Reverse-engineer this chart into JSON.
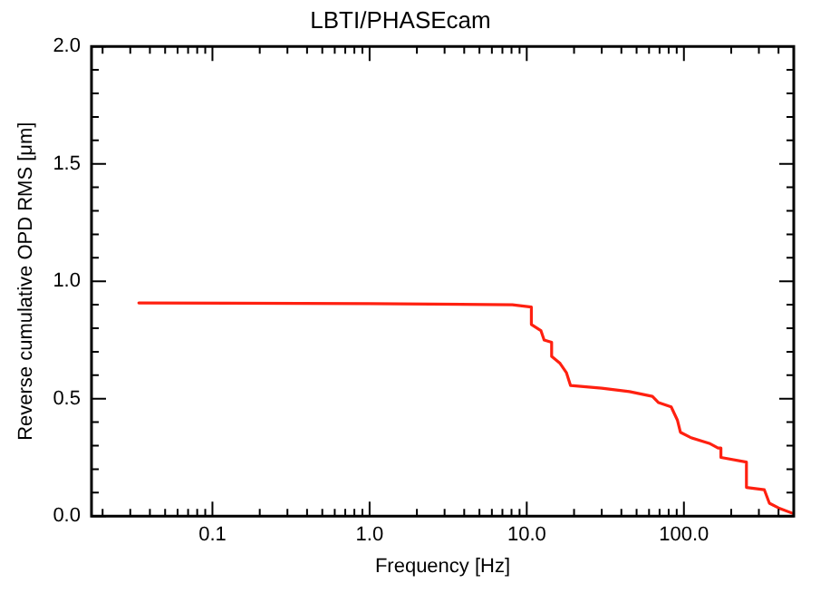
{
  "chart_data": {
    "type": "line",
    "title": "LBTI/PHASEcam",
    "xlabel": "Frequency [Hz]",
    "ylabel": "Reverse cumulative OPD RMS [μm]",
    "log": "x",
    "grid": false,
    "legend": false,
    "marker": "none",
    "line_style": "solid",
    "xlim": [
      0.017,
      500
    ],
    "xticks": [
      {
        "value": 0.02,
        "label": null
      },
      {
        "value": 0.03,
        "label": null
      },
      {
        "value": 0.04,
        "label": null
      },
      {
        "value": 0.05,
        "label": null
      },
      {
        "value": 0.06,
        "label": null
      },
      {
        "value": 0.07,
        "label": null
      },
      {
        "value": 0.08,
        "label": null
      },
      {
        "value": 0.09,
        "label": null
      },
      {
        "value": 0.1,
        "label": "0.1"
      },
      {
        "value": 0.2,
        "label": null
      },
      {
        "value": 0.3,
        "label": null
      },
      {
        "value": 0.4,
        "label": null
      },
      {
        "value": 0.5,
        "label": null
      },
      {
        "value": 0.6,
        "label": null
      },
      {
        "value": 0.7,
        "label": null
      },
      {
        "value": 0.8,
        "label": null
      },
      {
        "value": 0.9,
        "label": null
      },
      {
        "value": 1,
        "label": "1.0"
      },
      {
        "value": 2,
        "label": null
      },
      {
        "value": 3,
        "label": null
      },
      {
        "value": 4,
        "label": null
      },
      {
        "value": 5,
        "label": null
      },
      {
        "value": 6,
        "label": null
      },
      {
        "value": 7,
        "label": null
      },
      {
        "value": 8,
        "label": null
      },
      {
        "value": 9,
        "label": null
      },
      {
        "value": 10,
        "label": "10.0"
      },
      {
        "value": 20,
        "label": null
      },
      {
        "value": 30,
        "label": null
      },
      {
        "value": 40,
        "label": null
      },
      {
        "value": 50,
        "label": null
      },
      {
        "value": 60,
        "label": null
      },
      {
        "value": 70,
        "label": null
      },
      {
        "value": 80,
        "label": null
      },
      {
        "value": 90,
        "label": null
      },
      {
        "value": 100,
        "label": "100.0"
      },
      {
        "value": 200,
        "label": null
      },
      {
        "value": 300,
        "label": null
      },
      {
        "value": 400,
        "label": null
      }
    ],
    "ylim": [
      0,
      2
    ],
    "yticks": [
      {
        "value": 0,
        "label": "0.0"
      },
      {
        "value": 0.1,
        "label": null
      },
      {
        "value": 0.2,
        "label": null
      },
      {
        "value": 0.3,
        "label": null
      },
      {
        "value": 0.4,
        "label": null
      },
      {
        "value": 0.5,
        "label": "0.5"
      },
      {
        "value": 0.6,
        "label": null
      },
      {
        "value": 0.7,
        "label": null
      },
      {
        "value": 0.8,
        "label": null
      },
      {
        "value": 0.9,
        "label": null
      },
      {
        "value": 1,
        "label": "1.0"
      },
      {
        "value": 1.1,
        "label": null
      },
      {
        "value": 1.2,
        "label": null
      },
      {
        "value": 1.3,
        "label": null
      },
      {
        "value": 1.4,
        "label": null
      },
      {
        "value": 1.5,
        "label": "1.5"
      },
      {
        "value": 1.6,
        "label": null
      },
      {
        "value": 1.7,
        "label": null
      },
      {
        "value": 1.8,
        "label": null
      },
      {
        "value": 1.9,
        "label": null
      },
      {
        "value": 2,
        "label": "2.0"
      }
    ],
    "series": [
      {
        "color": "#ff2010",
        "x": [
          0.034,
          1,
          8.1,
          10.7,
          10.7,
          12.3,
          12.9,
          14.4,
          14.4,
          16.3,
          17.9,
          19,
          30,
          45,
          63,
          69,
          83,
          91,
          95,
          110,
          145,
          165,
          172,
          172,
          250,
          250,
          325,
          350,
          400,
          500
        ],
        "values": [
          0.908,
          0.905,
          0.9,
          0.89,
          0.816,
          0.79,
          0.75,
          0.74,
          0.68,
          0.65,
          0.61,
          0.556,
          0.545,
          0.53,
          0.51,
          0.483,
          0.465,
          0.408,
          0.357,
          0.335,
          0.31,
          0.29,
          0.29,
          0.25,
          0.23,
          0.122,
          0.112,
          0.055,
          0.035,
          0.01
        ]
      }
    ]
  }
}
